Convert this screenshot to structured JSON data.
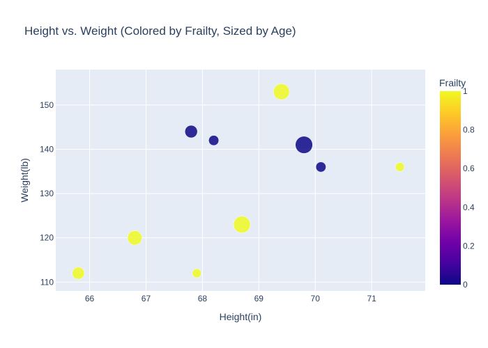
{
  "chart_data": {
    "type": "scatter",
    "title": "Height vs. Weight (Colored by Frailty, Sized by Age)",
    "xlabel": "Height(in)",
    "ylabel": "Weight(lb)",
    "xlim": [
      65.4,
      71.95
    ],
    "ylim": [
      108,
      158
    ],
    "x_ticks": [
      66,
      67,
      68,
      69,
      70,
      71
    ],
    "y_ticks": [
      110,
      120,
      130,
      140,
      150
    ],
    "grid": true,
    "colorbar": {
      "title": "Frailty",
      "range": [
        0,
        1
      ],
      "ticks": [
        0,
        0.2,
        0.4,
        0.6,
        0.8,
        1
      ],
      "colorscale": [
        "#0d0887",
        "#46039f",
        "#7201a8",
        "#9c179e",
        "#bd3786",
        "#d8576b",
        "#ed7953",
        "#fb9f3a",
        "#fdca26",
        "#f0f921"
      ]
    },
    "points": [
      {
        "x": 65.8,
        "y": 112,
        "frailty": 1,
        "size_rel": 0.62
      },
      {
        "x": 66.8,
        "y": 120,
        "frailty": 1,
        "size_rel": 0.74
      },
      {
        "x": 67.8,
        "y": 144,
        "frailty": 0,
        "size_rel": 0.64
      },
      {
        "x": 67.9,
        "y": 112,
        "frailty": 1,
        "size_rel": 0.46
      },
      {
        "x": 68.2,
        "y": 142,
        "frailty": 0,
        "size_rel": 0.52
      },
      {
        "x": 68.7,
        "y": 123,
        "frailty": 1,
        "size_rel": 0.86
      },
      {
        "x": 69.4,
        "y": 153,
        "frailty": 1,
        "size_rel": 0.82
      },
      {
        "x": 69.8,
        "y": 141,
        "frailty": 0,
        "size_rel": 0.88
      },
      {
        "x": 70.1,
        "y": 136,
        "frailty": 0,
        "size_rel": 0.52
      },
      {
        "x": 71.5,
        "y": 136,
        "frailty": 1,
        "size_rel": 0.46
      }
    ]
  }
}
